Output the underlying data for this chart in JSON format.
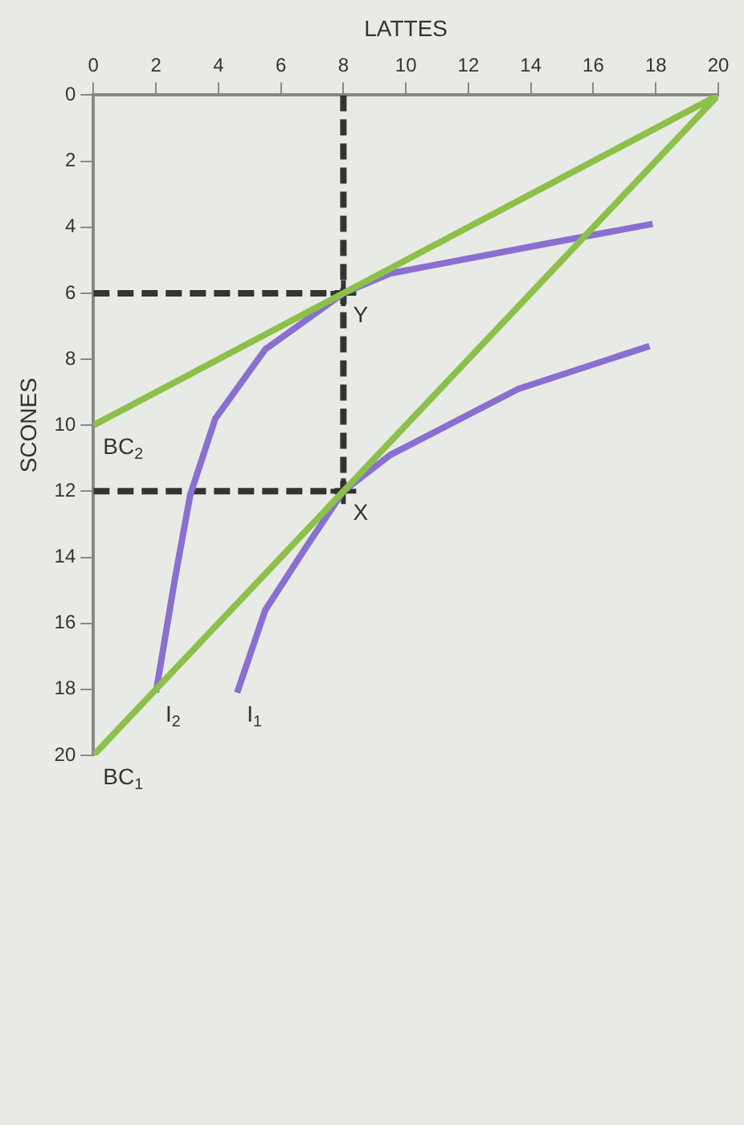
{
  "chart_data": {
    "type": "line",
    "xlabel": "LATTES",
    "ylabel": "SCONES",
    "xlim": [
      0,
      20
    ],
    "ylim": [
      20,
      0
    ],
    "xticks": [
      0,
      2,
      4,
      6,
      8,
      10,
      12,
      14,
      16,
      18,
      20
    ],
    "yticks": [
      0,
      2,
      4,
      6,
      8,
      10,
      12,
      14,
      16,
      18,
      20
    ],
    "grid": false,
    "legend": false,
    "marker": "none",
    "line_style": "solid",
    "series": [
      {
        "color": "#8dc04a",
        "x": [
          20,
          0
        ],
        "values": [
          0,
          20
        ]
      },
      {
        "color": "#8dc04a",
        "x": [
          20,
          0
        ],
        "values": [
          0,
          10
        ]
      },
      {
        "color": "#8a6fd0",
        "x": [
          17.9,
          14.5,
          9.5,
          8,
          5.5,
          3.9,
          3.1,
          2.6,
          2.0
        ],
        "values": [
          3.9,
          4.5,
          5.4,
          6,
          7.7,
          9.8,
          12.1,
          14.7,
          18.1
        ]
      },
      {
        "color": "#8a6fd0",
        "x": [
          17.8,
          13.6,
          9.5,
          8,
          6.8,
          5.5,
          4.6
        ],
        "values": [
          7.6,
          8.9,
          10.9,
          12,
          13.7,
          15.6,
          18.1
        ]
      },
      {
        "color": "#333333",
        "line_style": "dashed",
        "x": [
          8,
          8
        ],
        "values": [
          0,
          12
        ]
      },
      {
        "color": "#333333",
        "line_style": "dashed",
        "x": [
          0,
          8
        ],
        "values": [
          6,
          6
        ]
      },
      {
        "color": "#333333",
        "line_style": "dashed",
        "x": [
          0,
          8
        ],
        "values": [
          12,
          12
        ]
      },
      {
        "type": "scatter",
        "color": "#333333",
        "marker": "cross",
        "x": [
          8,
          8
        ],
        "values": [
          6,
          12
        ]
      }
    ],
    "annotations": [
      {
        "text": "Y",
        "x": 8,
        "y": 6
      },
      {
        "text": "X",
        "x": 8,
        "y": 12
      },
      {
        "text": "BC$_{2}$",
        "x": 0,
        "y": 10
      },
      {
        "text": "BC$_{1}$",
        "x": 0,
        "y": 20
      },
      {
        "text": "I$_{2}$",
        "x": 2.0,
        "y": 18.1
      },
      {
        "text": "I$_{1}$",
        "x": 4.6,
        "y": 18.1
      }
    ]
  }
}
